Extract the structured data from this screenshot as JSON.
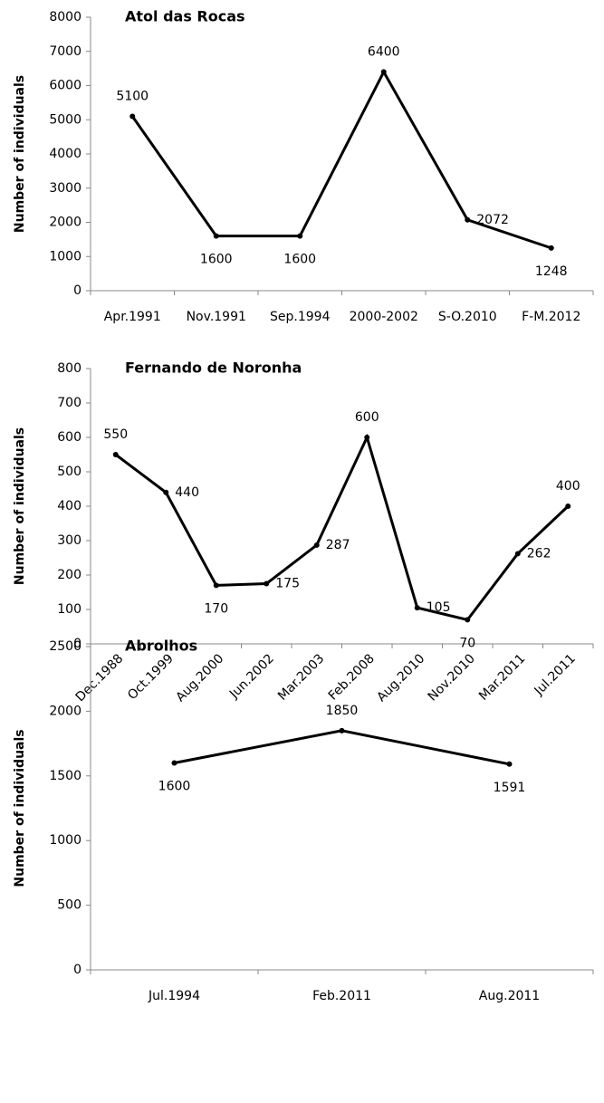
{
  "chart_data": [
    {
      "type": "line",
      "title": "Atol das Rocas",
      "ylabel": "Number of individuals",
      "color": "#000000",
      "categories": [
        "Apr.1991",
        "Nov.1991",
        "Sep.1994",
        "2000-2002",
        "S-O.2010",
        "F-M.2012"
      ],
      "values": [
        5100,
        1600,
        1600,
        6400,
        2072,
        1248
      ],
      "ylim": [
        0,
        8000
      ],
      "yticks": [
        0,
        1000,
        2000,
        3000,
        4000,
        5000,
        6000,
        7000,
        8000
      ]
    },
    {
      "type": "line",
      "title": "Fernando de Noronha",
      "ylabel": "Number of individuals",
      "color": "#000000",
      "categories": [
        "Dec.1988",
        "Oct.1999",
        "Aug.2000",
        "Jun.2002",
        "Mar.2003",
        "Feb.2008",
        "Aug.2010",
        "Nov.2010",
        "Mar.2011",
        "Jul.2011"
      ],
      "values": [
        550,
        440,
        170,
        175,
        287,
        600,
        105,
        70,
        262,
        400
      ],
      "ylim": [
        0,
        800
      ],
      "yticks": [
        0,
        100,
        200,
        300,
        400,
        500,
        600,
        700,
        800
      ]
    },
    {
      "type": "line",
      "title": "Abrolhos",
      "ylabel": "Number of individuals",
      "color": "#000000",
      "categories": [
        "Jul.1994",
        "Feb.2011",
        "Aug.2011"
      ],
      "values": [
        1600,
        1850,
        1591
      ],
      "ylim": [
        0,
        2500
      ],
      "yticks": [
        0,
        500,
        1000,
        1500,
        2000,
        2500
      ]
    }
  ]
}
